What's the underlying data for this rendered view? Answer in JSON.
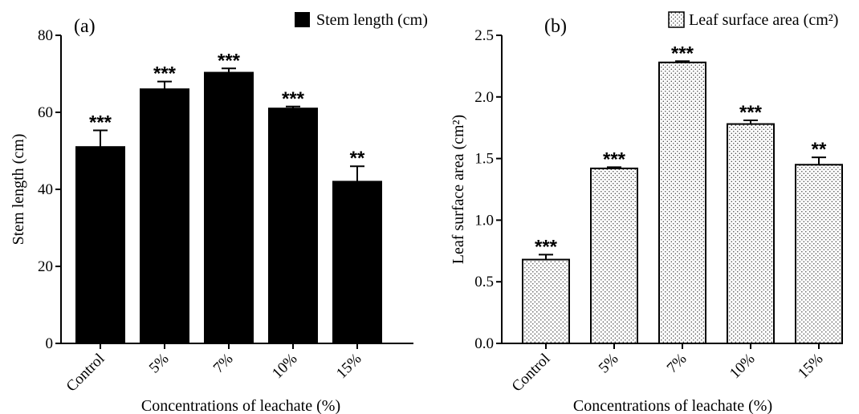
{
  "colors": {
    "bar_a": "#000000",
    "axis": "#000000",
    "background": "#ffffff"
  },
  "chart_data": [
    {
      "type": "bar",
      "panel_label": "(a)",
      "legend": "Stem length (cm)",
      "legend_position": "top-right",
      "xlabel": "Concentrations of leachate (%)",
      "ylabel": "Stem length (cm)",
      "categories": [
        "Control",
        "5%",
        "7%",
        "10%",
        "15%"
      ],
      "series": [
        {
          "name": "Stem length (cm)",
          "values": [
            51,
            66,
            70.3,
            61,
            42
          ],
          "errors": [
            4.3,
            2,
            1.1,
            0.5,
            4
          ]
        }
      ],
      "significance": [
        "***",
        "***",
        "***",
        "***",
        "**"
      ],
      "ylim": [
        0,
        80
      ],
      "yticks": [
        0,
        20,
        40,
        60,
        80
      ],
      "ytick_labels": [
        "0",
        "20",
        "40",
        "60",
        "80"
      ],
      "fill": "solid"
    },
    {
      "type": "bar",
      "panel_label": "(b)",
      "legend": "Leaf surface area (cm²)",
      "legend_position": "top-right",
      "xlabel": "Concentrations of leachate (%)",
      "ylabel": "Leaf surface area (cm²)",
      "categories": [
        "Control",
        "5%",
        "7%",
        "10%",
        "15%"
      ],
      "series": [
        {
          "name": "Leaf surface area (cm²)",
          "values": [
            0.68,
            1.42,
            2.28,
            1.78,
            1.45
          ],
          "errors": [
            0.04,
            0.01,
            0.01,
            0.03,
            0.06
          ]
        }
      ],
      "significance": [
        "***",
        "***",
        "***",
        "***",
        "**"
      ],
      "ylim": [
        0,
        2.5
      ],
      "yticks": [
        0,
        0.5,
        1.0,
        1.5,
        2.0,
        2.5
      ],
      "ytick_labels": [
        "0.0",
        "0.5",
        "1.0",
        "1.5",
        "2.0",
        "2.5"
      ],
      "fill": "dotted"
    }
  ]
}
